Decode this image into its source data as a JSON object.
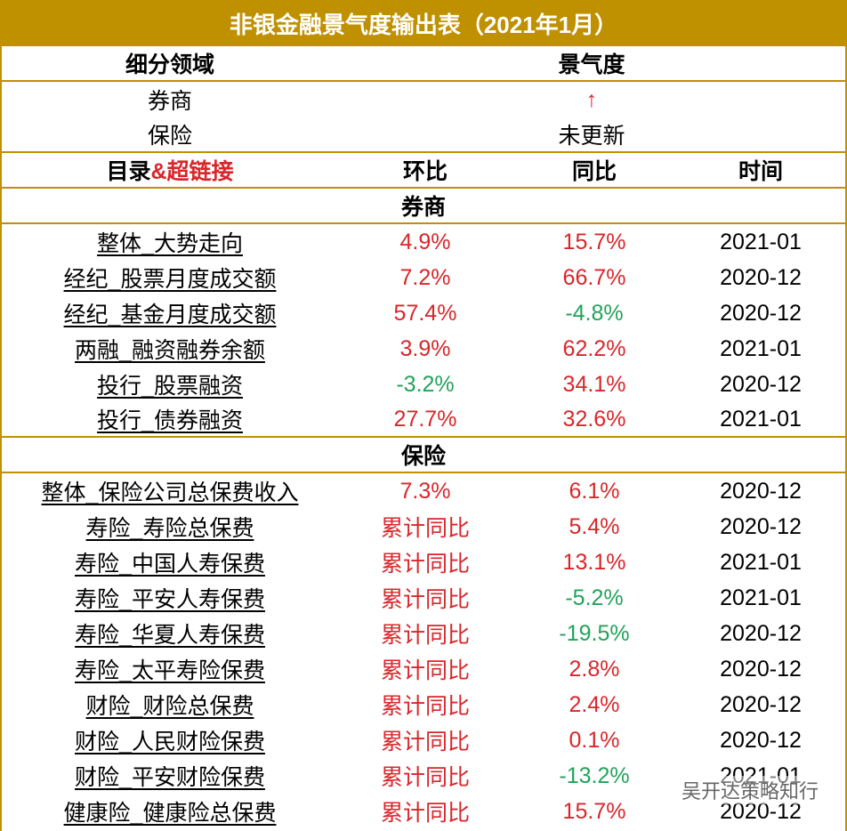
{
  "title": "非银金融景气度输出表（2021年1月）",
  "summary": {
    "header": [
      "细分领域",
      "景气度"
    ],
    "rows": [
      [
        "券商",
        "↑"
      ],
      [
        "保险",
        "未更新"
      ]
    ]
  },
  "table": {
    "header_first": [
      "目录",
      "&超链接"
    ],
    "header": [
      "环比",
      "同比",
      "时间"
    ],
    "sections": [
      {
        "name": "券商",
        "rows": [
          [
            "整体_大势走向",
            "4.9%",
            "15.7%",
            "2021-01"
          ],
          [
            "经纪_股票月度成交额",
            "7.2%",
            "66.7%",
            "2020-12"
          ],
          [
            "经纪_基金月度成交额",
            "57.4%",
            "-4.8%",
            "2020-12"
          ],
          [
            "两融_融资融券余额",
            "3.9%",
            "62.2%",
            "2021-01"
          ],
          [
            "投行_股票融资",
            "-3.2%",
            "34.1%",
            "2020-12"
          ],
          [
            "投行_债券融资",
            "27.7%",
            "32.6%",
            "2021-01"
          ]
        ]
      },
      {
        "name": "保险",
        "rows": [
          [
            "整体_保险公司总保费收入",
            "7.3%",
            "6.1%",
            "2020-12"
          ],
          [
            "寿险_寿险总保费",
            "累计同比",
            "5.4%",
            "2020-12"
          ],
          [
            "寿险_中国人寿保费",
            "累计同比",
            "13.1%",
            "2021-01"
          ],
          [
            "寿险_平安人寿保费",
            "累计同比",
            "-5.2%",
            "2021-01"
          ],
          [
            "寿险_华夏人寿保费",
            "累计同比",
            "-19.5%",
            "2020-12"
          ],
          [
            "寿险_太平寿险保费",
            "累计同比",
            "2.8%",
            "2020-12"
          ],
          [
            "财险_财险总保费",
            "累计同比",
            "2.4%",
            "2020-12"
          ],
          [
            "财险_人民财险保费",
            "累计同比",
            "0.1%",
            "2020-12"
          ],
          [
            "财险_平安财险保费",
            "累计同比",
            "-13.2%",
            "2021-01"
          ],
          [
            "健康险_健康险总保费",
            "累计同比",
            "15.7%",
            "2020-12"
          ]
        ]
      }
    ]
  },
  "watermark": "吴开达策略知行"
}
